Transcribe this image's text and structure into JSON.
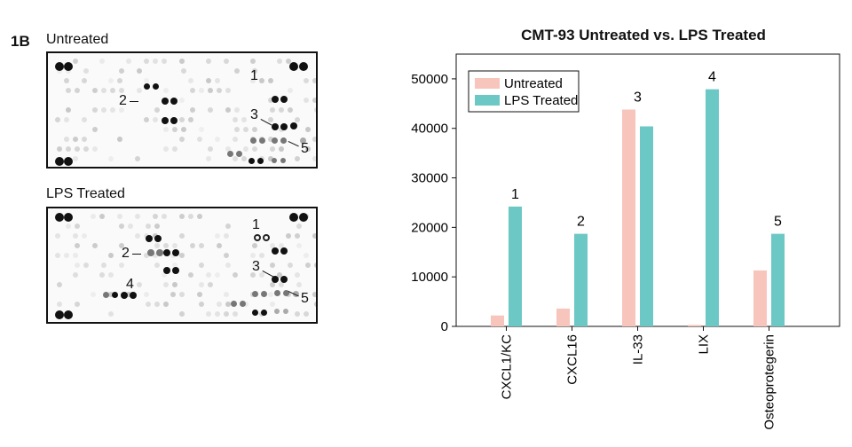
{
  "figure_label": "1B",
  "blots": {
    "untreated": {
      "title": "Untreated",
      "callouts": [
        "1",
        "2",
        "3",
        "5"
      ]
    },
    "lps": {
      "title": "LPS Treated",
      "callouts": [
        "1",
        "2",
        "3",
        "4",
        "5"
      ]
    }
  },
  "chart_data": {
    "type": "bar",
    "title": "CMT-93 Untreated vs. LPS Treated",
    "xlabel": "",
    "ylabel": "",
    "categories": [
      "CXCL1/KC",
      "CXCL16",
      "IL-33",
      "LIX",
      "Osteoprotegerin"
    ],
    "series": [
      {
        "name": "Untreated",
        "color": "#f7c5bc",
        "values": [
          2200,
          3600,
          43800,
          300,
          11300
        ]
      },
      {
        "name": "LPS Treated",
        "color": "#6cc8c5",
        "values": [
          24200,
          18700,
          40400,
          47900,
          18700
        ]
      }
    ],
    "bar_labels": [
      "1",
      "2",
      "3",
      "4",
      "5"
    ],
    "ylim": [
      0,
      55000
    ],
    "yticks": [
      0,
      10000,
      20000,
      30000,
      40000,
      50000
    ],
    "legend_position": "top-left",
    "grid": false
  }
}
